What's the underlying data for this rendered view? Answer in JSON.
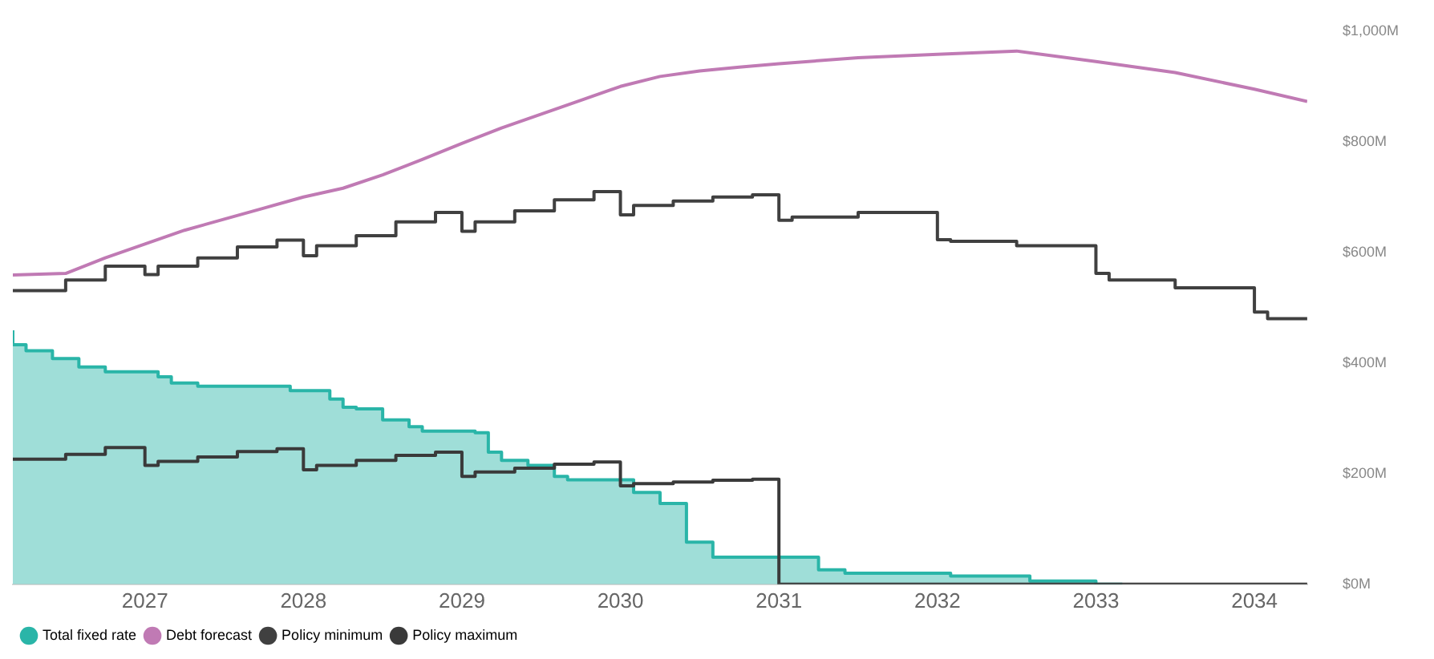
{
  "chart_data": {
    "type": "step",
    "xlim": [
      "2026-03",
      "2034-05"
    ],
    "xticks": [
      "2027",
      "2028",
      "2029",
      "2030",
      "2031",
      "2032",
      "2033",
      "2034"
    ],
    "ylim": [
      0,
      1000
    ],
    "yticks": [
      {
        "value": 0,
        "label": "$0M"
      },
      {
        "value": 200,
        "label": "$200M"
      },
      {
        "value": 400,
        "label": "$400M"
      },
      {
        "value": 600,
        "label": "$600M"
      },
      {
        "value": 800,
        "label": "$800M"
      },
      {
        "value": 1000,
        "label": "$1,000M"
      }
    ],
    "grid": false,
    "legend": "bottom left",
    "marker": "none",
    "series": [
      {
        "name": "Total fixed rate",
        "type": "area",
        "color": "#2ab5a8",
        "x": [
          "2026-03",
          "2026-04",
          "2026-06",
          "2026-08",
          "2026-10",
          "2027-02",
          "2027-03",
          "2027-05",
          "2027-12",
          "2028-03",
          "2028-04",
          "2028-05",
          "2028-07",
          "2028-09",
          "2028-10",
          "2029-02",
          "2029-03",
          "2029-04",
          "2029-06",
          "2029-08",
          "2029-09",
          "2030-02",
          "2030-04",
          "2030-06",
          "2030-08",
          "2031-04",
          "2031-06",
          "2032-02",
          "2032-08",
          "2033-01",
          "2033-03"
        ],
        "values": [
          459,
          433,
          422,
          408,
          393,
          384,
          375,
          364,
          358,
          350,
          335,
          320,
          317,
          297,
          285,
          277,
          274,
          239,
          224,
          215,
          195,
          189,
          166,
          146,
          76,
          49,
          26,
          20,
          15,
          6,
          0
        ]
      },
      {
        "name": "Debt forecast",
        "type": "line",
        "color": "#c07ab4",
        "x": [
          "2026-03",
          "2026-07",
          "2026-10",
          "2027-01",
          "2027-04",
          "2027-07",
          "2027-10",
          "2028-01",
          "2028-04",
          "2028-07",
          "2028-10",
          "2029-01",
          "2029-04",
          "2029-07",
          "2029-10",
          "2030-01",
          "2030-04",
          "2030-07",
          "2030-10",
          "2031-01",
          "2031-07",
          "2032-01",
          "2032-07",
          "2033-01",
          "2033-07",
          "2034-01",
          "2034-05"
        ],
        "values": [
          559,
          562,
          590,
          615,
          640,
          660,
          680,
          700,
          716,
          740,
          768,
          797,
          825,
          850,
          875,
          900,
          918,
          928,
          935,
          941,
          952,
          958,
          964,
          945,
          925,
          895,
          873
        ]
      },
      {
        "name": "Policy minimum",
        "color": "#404040",
        "x": [
          "2026-03",
          "2026-07",
          "2026-10",
          "2027-01",
          "2027-02",
          "2027-05",
          "2027-08",
          "2027-11",
          "2028-01",
          "2028-02",
          "2028-05",
          "2028-08",
          "2028-11",
          "2029-01",
          "2029-02",
          "2029-05",
          "2029-08",
          "2029-11",
          "2030-01",
          "2030-02",
          "2030-05",
          "2030-08",
          "2030-11",
          "2031-01",
          "2031-02",
          "2031-07",
          "2032-01",
          "2032-02",
          "2032-07",
          "2033-01",
          "2033-02",
          "2033-07",
          "2034-01",
          "2034-02",
          "2034-05"
        ],
        "values": [
          530,
          531,
          550,
          575,
          560,
          575,
          590,
          610,
          622,
          594,
          612,
          630,
          655,
          672,
          638,
          655,
          675,
          695,
          710,
          668,
          685,
          693,
          700,
          704,
          658,
          664,
          672,
          623,
          620,
          612,
          562,
          550,
          536,
          492,
          480
        ]
      },
      {
        "name": "Policy maximum",
        "color": "#3a3a3a",
        "x": [
          "2026-03",
          "2026-07",
          "2026-10",
          "2027-01",
          "2027-02",
          "2027-05",
          "2027-08",
          "2027-11",
          "2028-01",
          "2028-02",
          "2028-05",
          "2028-08",
          "2028-11",
          "2029-01",
          "2029-02",
          "2029-05",
          "2029-08",
          "2029-11",
          "2030-01",
          "2030-02",
          "2030-05",
          "2030-08",
          "2030-11",
          "2031-01",
          "2031-02",
          "2034-05"
        ],
        "values": [
          224,
          226,
          235,
          247,
          215,
          222,
          230,
          240,
          245,
          207,
          215,
          224,
          233,
          239,
          195,
          203,
          210,
          217,
          221,
          178,
          182,
          185,
          188,
          190,
          0,
          0
        ]
      }
    ]
  }
}
